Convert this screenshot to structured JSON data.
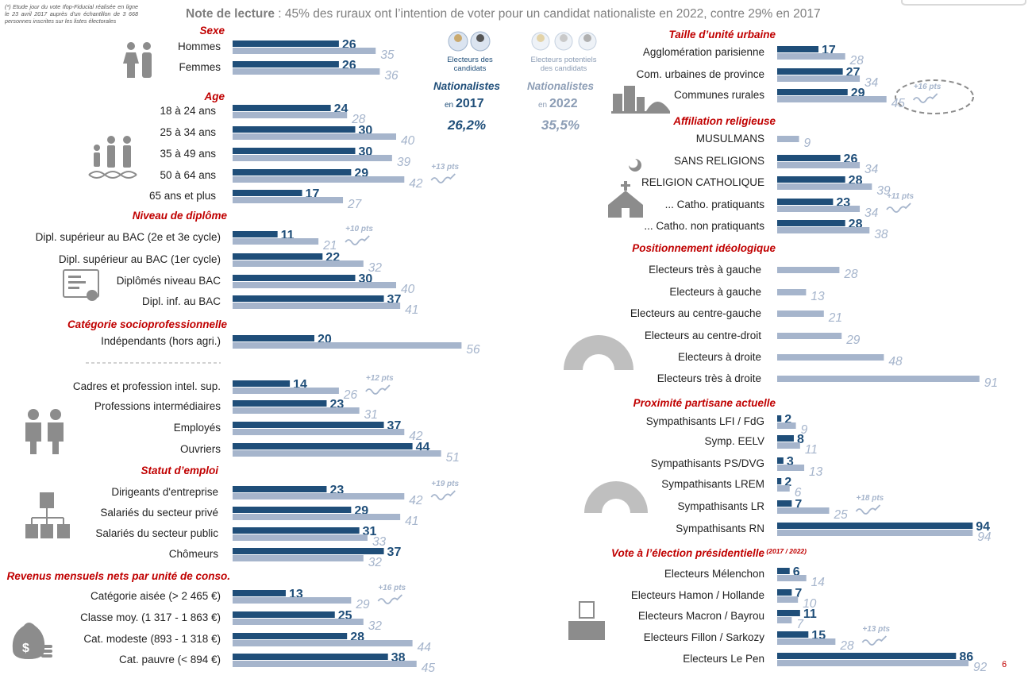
{
  "note": "(*) Etude jour du vote Ifop-Fiducial réalisée en ligne le 23 avril 2017 auprès d'un échantillon de 3 668 personnes inscrites sur les listes électorales",
  "headline_bold": "Note de lecture",
  "headline_text": " : 45% des ruraux ont l’intention de voter pour un candidat nationaliste en 2022, contre 29% en 2017",
  "page_number": "6",
  "colors": {
    "y2017": "#1f4e79",
    "y2022": "#a6b5cc",
    "section": "#c00000",
    "text": "#222222",
    "icon": "#8c8c8c"
  },
  "center": {
    "left_caption": "Electeurs des candidats",
    "left_bold": "Nationalistes",
    "left_en": "en",
    "left_year": "2017",
    "left_value": "26,2%",
    "right_caption": "Electeurs potentiels des candidats",
    "right_bold": "Nationalistes",
    "right_en": "en",
    "right_year": "2022",
    "right_value": "35,5%"
  },
  "chart_data": {
    "type": "bar",
    "orientation": "horizontal",
    "series_names": [
      "2017",
      "2022"
    ],
    "panels": [
      {
        "title": "Sexe",
        "rows": [
          {
            "label": "Hommes",
            "v2017": 26,
            "v2022": 35
          },
          {
            "label": "Femmes",
            "v2017": 26,
            "v2022": 36
          }
        ]
      },
      {
        "title": "Age",
        "rows": [
          {
            "label": "18 à 24 ans",
            "v2017": 24,
            "v2022": 28
          },
          {
            "label": "25 à 34 ans",
            "v2017": 30,
            "v2022": 40
          },
          {
            "label": "35 à 49 ans",
            "v2017": 30,
            "v2022": 39
          },
          {
            "label": "50 à 64 ans",
            "v2017": 29,
            "v2022": 42,
            "delta": "+13 pts"
          },
          {
            "label": "65 ans et plus",
            "v2017": 17,
            "v2022": 27
          }
        ]
      },
      {
        "title": "Niveau de diplôme",
        "rows": [
          {
            "label": "Dipl. supérieur au BAC (2e et 3e  cycle)",
            "v2017": 11,
            "v2022": 21,
            "delta": "+10 pts"
          },
          {
            "label": "Dipl. supérieur au BAC (1er cycle)",
            "v2017": 22,
            "v2022": 32
          },
          {
            "label": "Diplômés niveau BAC",
            "v2017": 30,
            "v2022": 40
          },
          {
            "label": "Dipl. inf. au BAC",
            "v2017": 37,
            "v2022": 41
          }
        ]
      },
      {
        "title": "Catégorie socioprofessionnelle",
        "rows": [
          {
            "label": "Indépendants (hors agri.)",
            "v2017": 20,
            "v2022": 56
          },
          {
            "label": "Cadres et profession intel. sup.",
            "v2017": 14,
            "v2022": 26,
            "delta": "+12 pts"
          },
          {
            "label": "Professions intermédiaires",
            "v2017": 23,
            "v2022": 31
          },
          {
            "label": "Employés",
            "v2017": 37,
            "v2022": 42
          },
          {
            "label": "Ouvriers",
            "v2017": 44,
            "v2022": 51
          }
        ]
      },
      {
        "title": "Statut d’emploi",
        "rows": [
          {
            "label": "Dirigeants d'entreprise",
            "v2017": 23,
            "v2022": 42,
            "delta": "+19 pts"
          },
          {
            "label": "Salariés du secteur privé",
            "v2017": 29,
            "v2022": 41
          },
          {
            "label": "Salariés du secteur public",
            "v2017": 31,
            "v2022": 33
          },
          {
            "label": "Chômeurs",
            "v2017": 37,
            "v2022": 32
          }
        ]
      },
      {
        "title": "Revenus mensuels nets par unité de conso.",
        "rows": [
          {
            "label": "Catégorie aisée (> 2 465 €)",
            "v2017": 13,
            "v2022": 29,
            "delta": "+16 pts"
          },
          {
            "label": "Classe moy. (1 317 - 1 863 €)",
            "v2017": 25,
            "v2022": 32
          },
          {
            "label": "Cat. modeste (893 - 1 318 €)",
            "v2017": 28,
            "v2022": 44
          },
          {
            "label": "Cat. pauvre (< 894 €)",
            "v2017": 38,
            "v2022": 45
          }
        ]
      },
      {
        "title": "Taille d’unité urbaine",
        "rows": [
          {
            "label": "Agglomération parisienne",
            "v2017": 17,
            "v2022": 28
          },
          {
            "label": "Com. urbaines de province",
            "v2017": 27,
            "v2022": 34
          },
          {
            "label": "Communes rurales",
            "v2017": 29,
            "v2022": 45,
            "delta": "+16 pts"
          }
        ]
      },
      {
        "title": "Affiliation religieuse",
        "rows": [
          {
            "label": "MUSULMANS",
            "v2017": null,
            "v2022": 9
          },
          {
            "label": "SANS RELIGIONS",
            "v2017": 26,
            "v2022": 34
          },
          {
            "label": "RELIGION CATHOLIQUE",
            "v2017": 28,
            "v2022": 39
          },
          {
            "label": "... Catho. pratiquants",
            "v2017": 23,
            "v2022": 34,
            "delta": "+11 pts"
          },
          {
            "label": "... Catho. non pratiquants",
            "v2017": 28,
            "v2022": 38
          }
        ]
      },
      {
        "title": "Positionnement idéologique",
        "rows": [
          {
            "label": "Electeurs très à gauche",
            "v2017": null,
            "v2022": 28
          },
          {
            "label": "Electeurs à gauche",
            "v2017": null,
            "v2022": 13
          },
          {
            "label": "Electeurs au centre-gauche",
            "v2017": null,
            "v2022": 21
          },
          {
            "label": "Electeurs au centre-droit",
            "v2017": null,
            "v2022": 29
          },
          {
            "label": "Electeurs à droite",
            "v2017": null,
            "v2022": 48
          },
          {
            "label": "Electeurs très à droite",
            "v2017": null,
            "v2022": 91
          }
        ]
      },
      {
        "title": "Proximité partisane actuelle",
        "rows": [
          {
            "label": "Sympathisants LFI / FdG",
            "v2017": 2,
            "v2022": 9
          },
          {
            "label": "Symp.  EELV",
            "v2017": 8,
            "v2022": 11
          },
          {
            "label": "Sympathisants PS/DVG",
            "v2017": 3,
            "v2022": 13
          },
          {
            "label": "Sympathisants LREM",
            "v2017": 2,
            "v2022": 6
          },
          {
            "label": "Sympathisants LR",
            "v2017": 7,
            "v2022": 25,
            "delta": "+18 pts"
          },
          {
            "label": "Sympathisants RN",
            "v2017": 94,
            "v2022": 94
          }
        ]
      },
      {
        "title": "Vote à l’élection présidentielle",
        "title_suffix": "(2017 / 2022)",
        "rows": [
          {
            "label": "Electeurs Mélenchon",
            "v2017": 6,
            "v2022": 14
          },
          {
            "label": "Electeurs Hamon / Hollande",
            "v2017": 7,
            "v2022": 10
          },
          {
            "label": "Electeurs Macron / Bayrou",
            "v2017": 11,
            "v2022": 7
          },
          {
            "label": "Electeurs Fillon / Sarkozy",
            "v2017": 15,
            "v2022": 28,
            "delta": "+13 pts"
          },
          {
            "label": "Electeurs Le Pen",
            "v2017": 86,
            "v2022": 92
          }
        ]
      }
    ]
  }
}
